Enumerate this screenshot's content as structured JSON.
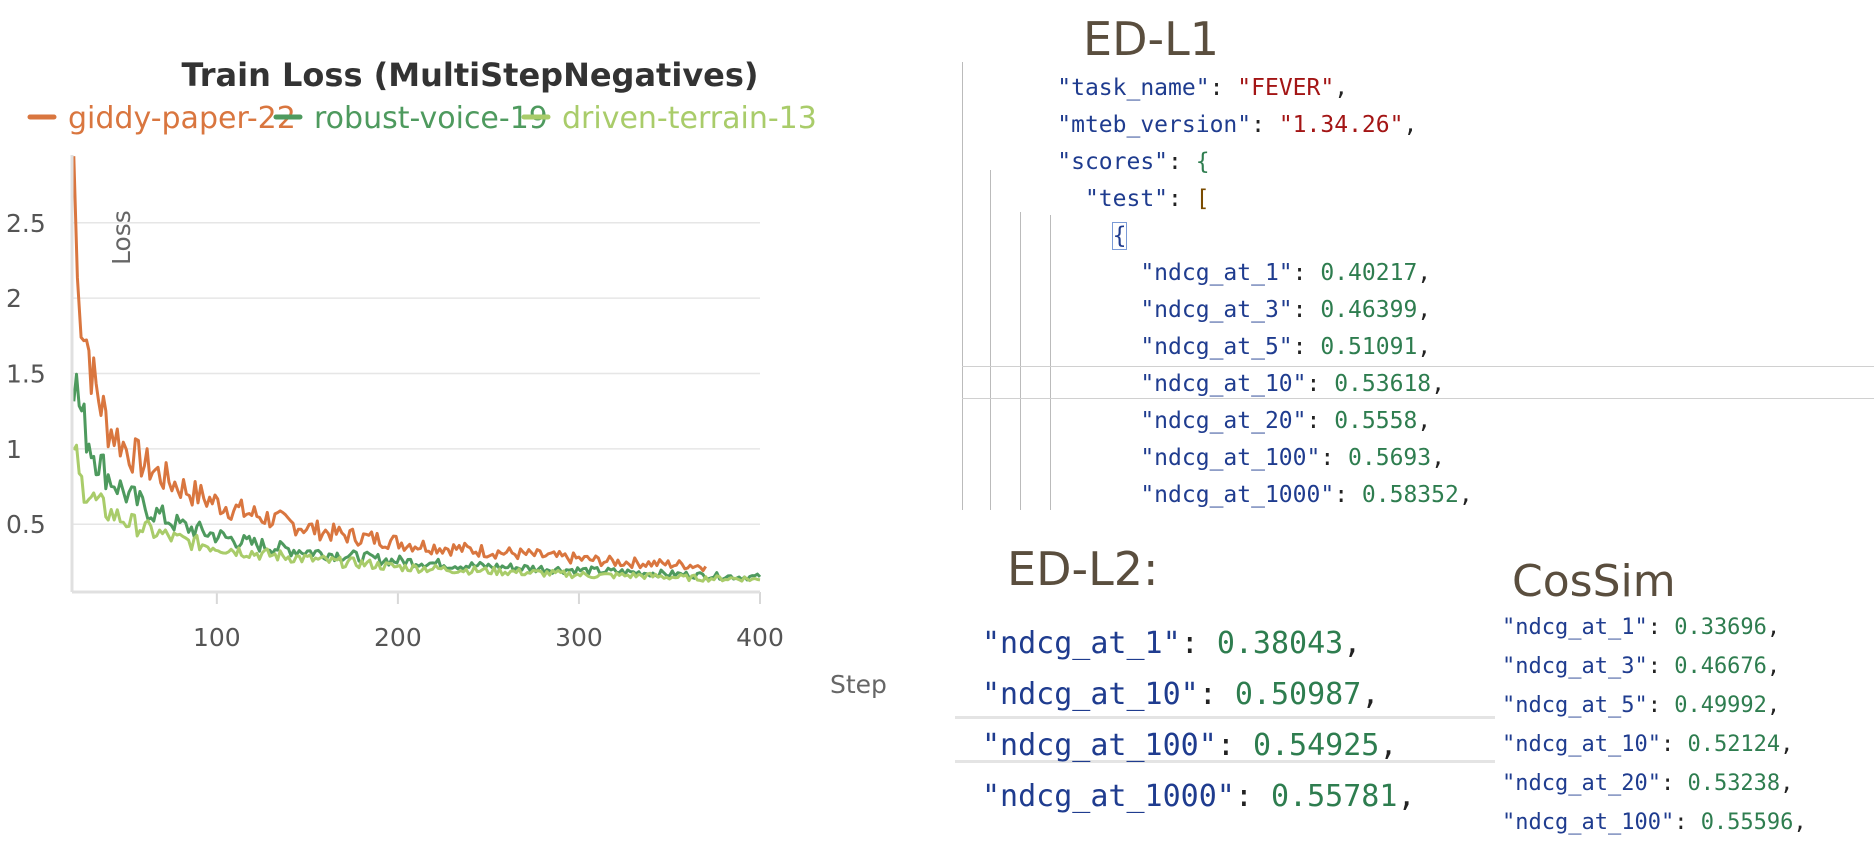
{
  "chart_data": {
    "type": "line",
    "title": "Train Loss (MultiStepNegatives)",
    "ylabel": "Loss",
    "xlabel": "Step",
    "xlim": [
      20,
      400
    ],
    "ylim": [
      0.05,
      2.95
    ],
    "xticks": [
      100,
      200,
      300,
      400
    ],
    "yticks": [
      0.5,
      1,
      1.5,
      2,
      2.5
    ],
    "ytick_labels": [
      "0.5",
      "1",
      "1.5",
      "2",
      "2.5"
    ],
    "xtick_labels": [
      "100",
      "200",
      "300",
      "400"
    ],
    "grid": true,
    "legend_position": "top",
    "series": [
      {
        "name": "giddy-paper-22",
        "color": "#d9763f",
        "x": [
          21,
          23,
          25,
          28,
          32,
          36,
          40,
          45,
          50,
          55,
          60,
          66,
          72,
          80,
          88,
          96,
          105,
          115,
          125,
          135,
          145,
          160,
          175,
          190,
          205,
          220,
          240,
          260,
          280,
          300,
          320,
          340,
          360,
          370
        ],
        "y": [
          2.95,
          2.1,
          1.95,
          1.75,
          1.45,
          1.3,
          1.15,
          1.08,
          1.0,
          0.95,
          0.9,
          0.85,
          0.8,
          0.75,
          0.7,
          0.66,
          0.62,
          0.58,
          0.55,
          0.52,
          0.49,
          0.45,
          0.42,
          0.4,
          0.37,
          0.35,
          0.33,
          0.31,
          0.29,
          0.27,
          0.25,
          0.24,
          0.23,
          0.22
        ]
      },
      {
        "name": "robust-voice-19",
        "color": "#4e9a5e",
        "x": [
          21,
          24,
          28,
          32,
          36,
          40,
          45,
          50,
          56,
          62,
          70,
          78,
          86,
          95,
          105,
          115,
          125,
          135,
          150,
          165,
          180,
          195,
          210,
          230,
          250,
          270,
          290,
          310,
          330,
          350,
          370,
          390,
          400
        ],
        "y": [
          1.5,
          1.3,
          1.1,
          0.98,
          0.9,
          0.82,
          0.76,
          0.7,
          0.65,
          0.6,
          0.55,
          0.5,
          0.47,
          0.44,
          0.41,
          0.38,
          0.36,
          0.34,
          0.32,
          0.3,
          0.28,
          0.26,
          0.25,
          0.23,
          0.22,
          0.21,
          0.2,
          0.19,
          0.18,
          0.17,
          0.16,
          0.15,
          0.15
        ]
      },
      {
        "name": "driven-terrain-13",
        "color": "#a9cc6a",
        "x": [
          21,
          24,
          28,
          32,
          36,
          40,
          45,
          50,
          56,
          62,
          70,
          78,
          86,
          95,
          105,
          115,
          125,
          135,
          150,
          165,
          180,
          195,
          210,
          230,
          250,
          270,
          290,
          310,
          330,
          350,
          370,
          390,
          400
        ],
        "y": [
          1.05,
          0.8,
          0.72,
          0.66,
          0.62,
          0.58,
          0.55,
          0.52,
          0.49,
          0.46,
          0.43,
          0.4,
          0.38,
          0.36,
          0.34,
          0.32,
          0.3,
          0.29,
          0.27,
          0.25,
          0.24,
          0.22,
          0.21,
          0.2,
          0.19,
          0.18,
          0.17,
          0.16,
          0.16,
          0.15,
          0.14,
          0.14,
          0.13
        ]
      }
    ]
  },
  "ed_l1": {
    "title": "ED-L1",
    "task_name_key": "\"task_name\"",
    "task_name_val": "\"FEVER\"",
    "mteb_version_key": "\"mteb_version\"",
    "mteb_version_val": "\"1.34.26\"",
    "scores_key": "\"scores\"",
    "test_key": "\"test\"",
    "metrics": [
      {
        "key": "\"ndcg_at_1\"",
        "val": "0.40217"
      },
      {
        "key": "\"ndcg_at_3\"",
        "val": "0.46399"
      },
      {
        "key": "\"ndcg_at_5\"",
        "val": "0.51091"
      },
      {
        "key": "\"ndcg_at_10\"",
        "val": "0.53618"
      },
      {
        "key": "\"ndcg_at_20\"",
        "val": "0.5558"
      },
      {
        "key": "\"ndcg_at_100\"",
        "val": "0.5693"
      },
      {
        "key": "\"ndcg_at_1000\"",
        "val": "0.58352"
      }
    ]
  },
  "ed_l2": {
    "title": "ED-L2:",
    "metrics": [
      {
        "key": "\"ndcg_at_1\"",
        "val": "0.38043"
      },
      {
        "key": "\"ndcg_at_10\"",
        "val": "0.50987"
      },
      {
        "key": "\"ndcg_at_100\"",
        "val": "0.54925"
      },
      {
        "key": "\"ndcg_at_1000\"",
        "val": "0.55781"
      }
    ]
  },
  "cossim": {
    "title": "CosSim",
    "metrics": [
      {
        "key": "\"ndcg_at_1\"",
        "val": "0.33696"
      },
      {
        "key": "\"ndcg_at_3\"",
        "val": "0.46676"
      },
      {
        "key": "\"ndcg_at_5\"",
        "val": "0.49992"
      },
      {
        "key": "\"ndcg_at_10\"",
        "val": "0.52124"
      },
      {
        "key": "\"ndcg_at_20\"",
        "val": "0.53238"
      },
      {
        "key": "\"ndcg_at_100\"",
        "val": "0.55596"
      }
    ]
  }
}
